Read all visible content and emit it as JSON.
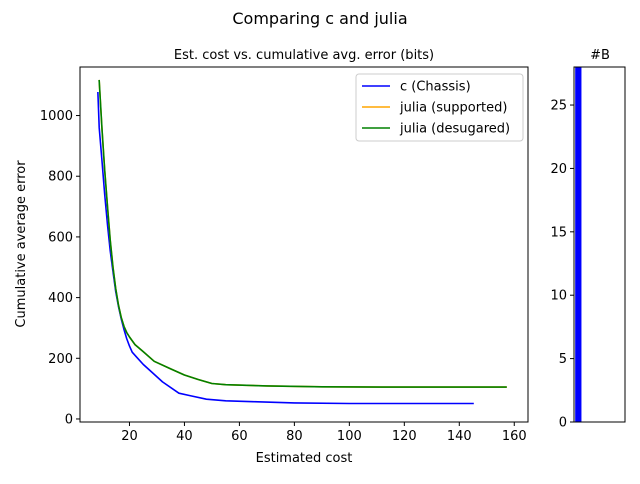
{
  "figure": {
    "suptitle": "Comparing c and julia"
  },
  "chart_data": [
    {
      "type": "line",
      "title": "Est. cost vs. cumulative avg. error (bits)",
      "xlabel": "Estimated cost",
      "ylabel": "Cumulative average error",
      "xlim": [
        2,
        165
      ],
      "ylim": [
        -10,
        1160
      ],
      "x_ticks": [
        20,
        40,
        60,
        80,
        100,
        120,
        140,
        160
      ],
      "y_ticks": [
        0,
        200,
        400,
        600,
        800,
        1000
      ],
      "grid": false,
      "legend_position": "top-right",
      "series": [
        {
          "name": "c (Chassis)",
          "color": "#0000ff",
          "points": [
            [
              8.5,
              1075
            ],
            [
              9,
              960
            ],
            [
              10,
              850
            ],
            [
              11,
              740
            ],
            [
              12,
              640
            ],
            [
              13,
              555
            ],
            [
              14,
              485
            ],
            [
              15,
              420
            ],
            [
              16,
              370
            ],
            [
              17,
              330
            ],
            [
              18,
              295
            ],
            [
              19,
              265
            ],
            [
              20,
              240
            ],
            [
              21,
              220
            ],
            [
              23,
              200
            ],
            [
              25,
              180
            ],
            [
              28,
              155
            ],
            [
              32,
              122
            ],
            [
              38,
              85
            ],
            [
              42,
              77
            ],
            [
              48,
              65
            ],
            [
              55,
              60
            ],
            [
              65,
              57
            ],
            [
              80,
              53
            ],
            [
              100,
              51
            ],
            [
              120,
              51
            ],
            [
              145,
              51
            ]
          ]
        },
        {
          "name": "julia (supported)",
          "color": "#ffa500",
          "points": [
            [
              9,
              1115
            ],
            [
              10,
              955
            ],
            [
              11,
              820
            ],
            [
              12,
              700
            ],
            [
              13,
              590
            ],
            [
              14,
              500
            ],
            [
              15,
              430
            ],
            [
              16,
              375
            ],
            [
              17,
              335
            ],
            [
              18,
              305
            ],
            [
              19,
              285
            ],
            [
              20,
              270
            ],
            [
              22,
              245
            ],
            [
              25,
              222
            ],
            [
              29,
              190
            ],
            [
              35,
              165
            ],
            [
              40,
              145
            ],
            [
              45,
              130
            ],
            [
              50,
              117
            ],
            [
              55,
              113
            ],
            [
              70,
              109
            ],
            [
              90,
              106
            ],
            [
              120,
              105
            ],
            [
              157,
              105
            ]
          ]
        },
        {
          "name": "julia (desugared)",
          "color": "#008000",
          "points": [
            [
              9,
              1115
            ],
            [
              10,
              955
            ],
            [
              11,
              820
            ],
            [
              12,
              700
            ],
            [
              13,
              590
            ],
            [
              14,
              500
            ],
            [
              15,
              430
            ],
            [
              16,
              375
            ],
            [
              17,
              335
            ],
            [
              18,
              305
            ],
            [
              19,
              285
            ],
            [
              20,
              270
            ],
            [
              22,
              245
            ],
            [
              25,
              222
            ],
            [
              29,
              190
            ],
            [
              35,
              165
            ],
            [
              40,
              145
            ],
            [
              45,
              130
            ],
            [
              50,
              117
            ],
            [
              55,
              113
            ],
            [
              70,
              109
            ],
            [
              90,
              106
            ],
            [
              120,
              105
            ],
            [
              157,
              105
            ]
          ]
        }
      ]
    },
    {
      "type": "bar",
      "title": "#B",
      "ylim": [
        0,
        28
      ],
      "y_ticks": [
        0,
        5,
        10,
        15,
        20,
        25
      ],
      "bars": [
        {
          "value": 28,
          "color": "#0000ff",
          "x_start": 0.15,
          "x_end": 0.95
        }
      ],
      "xlim": [
        0,
        6.5
      ]
    }
  ]
}
